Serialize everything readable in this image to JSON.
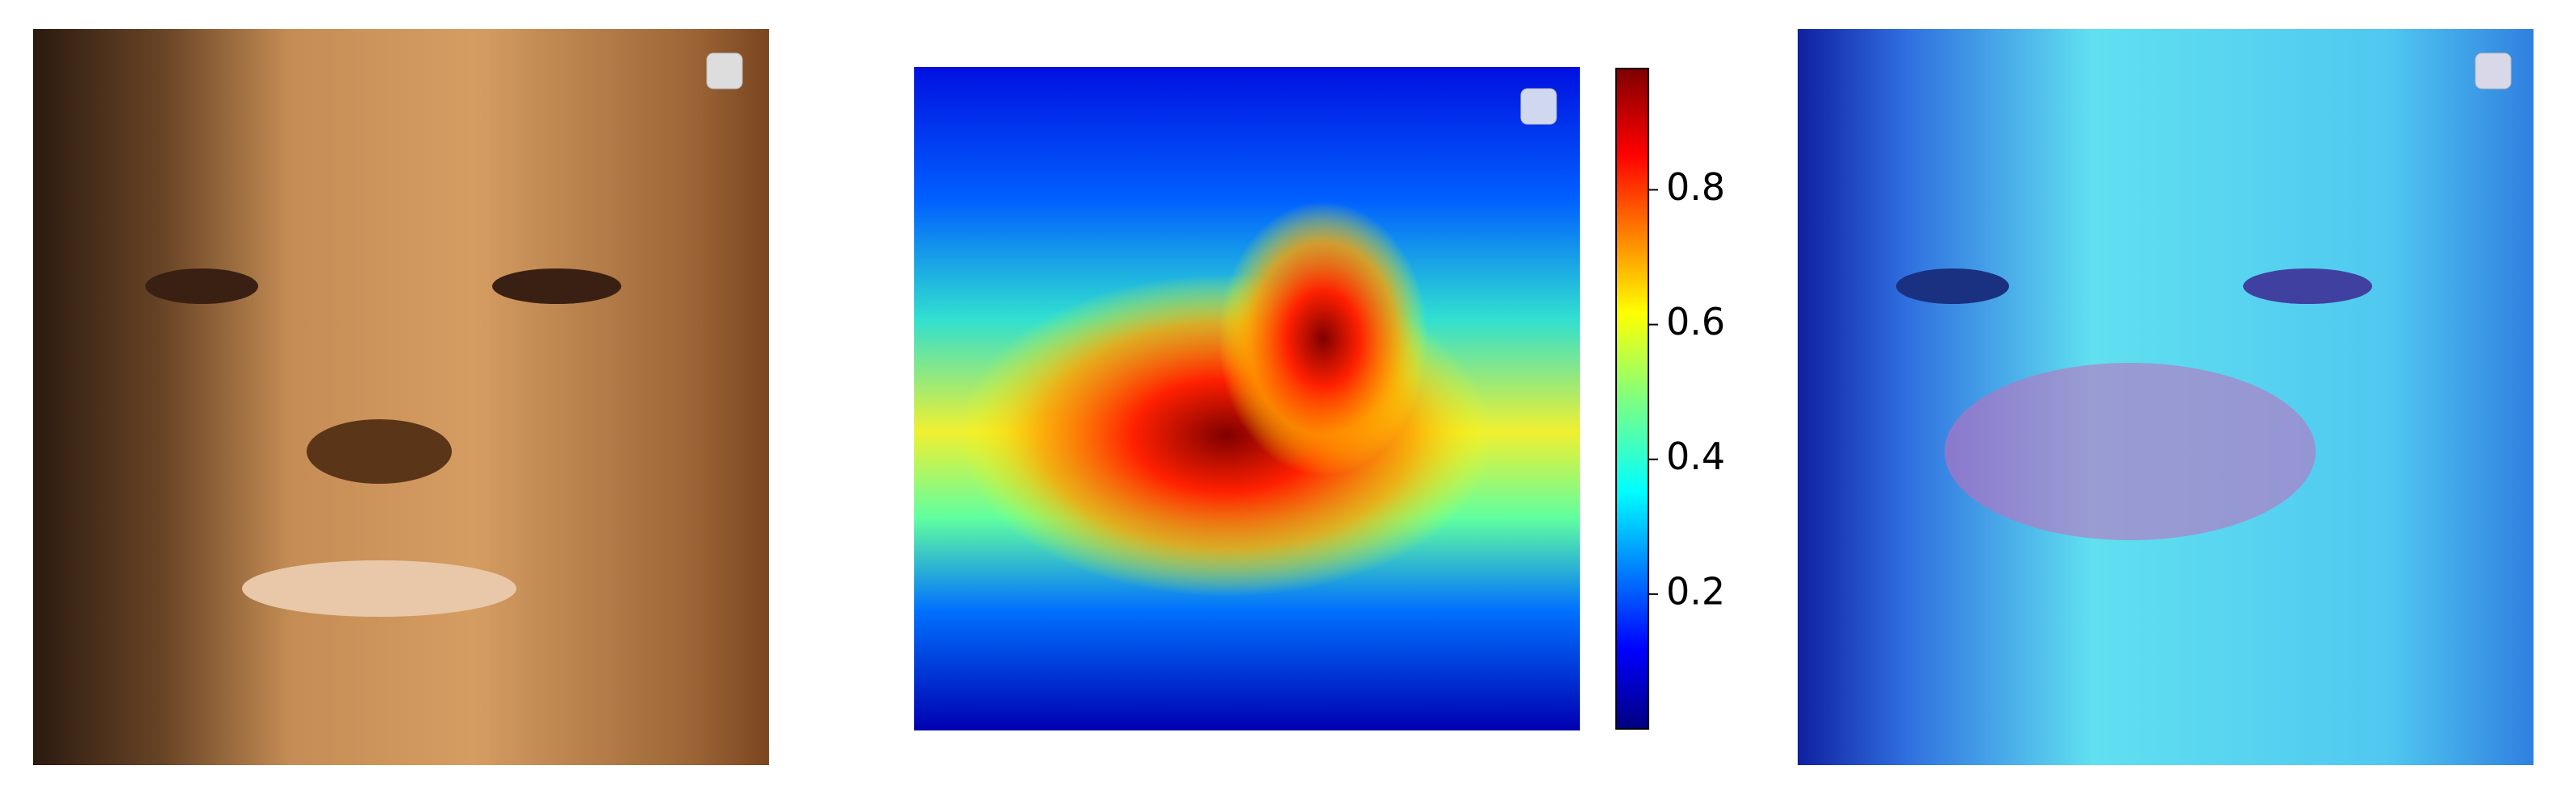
{
  "chart_data": {
    "type": "heatmap",
    "clim": [
      0.0,
      0.98
    ],
    "colorbar_ticks": [
      0.2,
      0.4,
      0.6,
      0.8
    ],
    "colormap": "jet"
  }
}
